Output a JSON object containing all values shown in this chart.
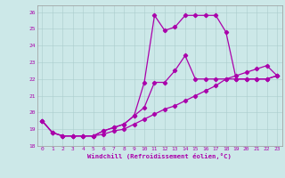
{
  "xlabel": "Windchill (Refroidissement éolien,°C)",
  "bg_color": "#cce8e8",
  "line_color": "#aa00aa",
  "xlim": [
    -0.5,
    23.5
  ],
  "ylim": [
    18,
    26.4
  ],
  "xticks": [
    0,
    1,
    2,
    3,
    4,
    5,
    6,
    7,
    8,
    9,
    10,
    11,
    12,
    13,
    14,
    15,
    16,
    17,
    18,
    19,
    20,
    21,
    22,
    23
  ],
  "yticks": [
    18,
    19,
    20,
    21,
    22,
    23,
    24,
    25,
    26
  ],
  "line1_x": [
    0,
    1,
    2,
    3,
    4,
    5,
    6,
    7,
    8,
    9,
    10,
    11,
    12,
    13,
    14,
    15,
    16,
    17,
    18,
    19,
    20,
    21,
    22,
    23
  ],
  "line1_y": [
    19.5,
    18.8,
    18.6,
    18.6,
    18.6,
    18.6,
    18.9,
    19.1,
    19.3,
    19.8,
    20.3,
    21.8,
    21.8,
    22.5,
    23.4,
    22.0,
    22.0,
    22.0,
    22.0,
    22.0,
    22.0,
    22.0,
    22.0,
    22.2
  ],
  "line2_x": [
    0,
    1,
    2,
    3,
    4,
    5,
    6,
    7,
    8,
    9,
    10,
    11,
    12,
    13,
    14,
    15,
    16,
    17,
    18,
    19,
    20,
    21,
    22,
    23
  ],
  "line2_y": [
    19.5,
    18.8,
    18.6,
    18.6,
    18.6,
    18.6,
    18.9,
    19.1,
    19.3,
    19.8,
    21.8,
    25.8,
    24.9,
    25.1,
    25.8,
    25.8,
    25.8,
    25.8,
    24.8,
    22.0,
    22.0,
    22.0,
    22.0,
    22.2
  ],
  "line3_x": [
    0,
    1,
    2,
    3,
    4,
    5,
    6,
    7,
    8,
    9,
    10,
    11,
    12,
    13,
    14,
    15,
    16,
    17,
    18,
    19,
    20,
    21,
    22,
    23
  ],
  "line3_y": [
    19.5,
    18.8,
    18.6,
    18.6,
    18.6,
    18.6,
    18.7,
    18.9,
    19.0,
    19.3,
    19.6,
    19.9,
    20.2,
    20.4,
    20.7,
    21.0,
    21.3,
    21.6,
    22.0,
    22.2,
    22.4,
    22.6,
    22.8,
    22.2
  ]
}
